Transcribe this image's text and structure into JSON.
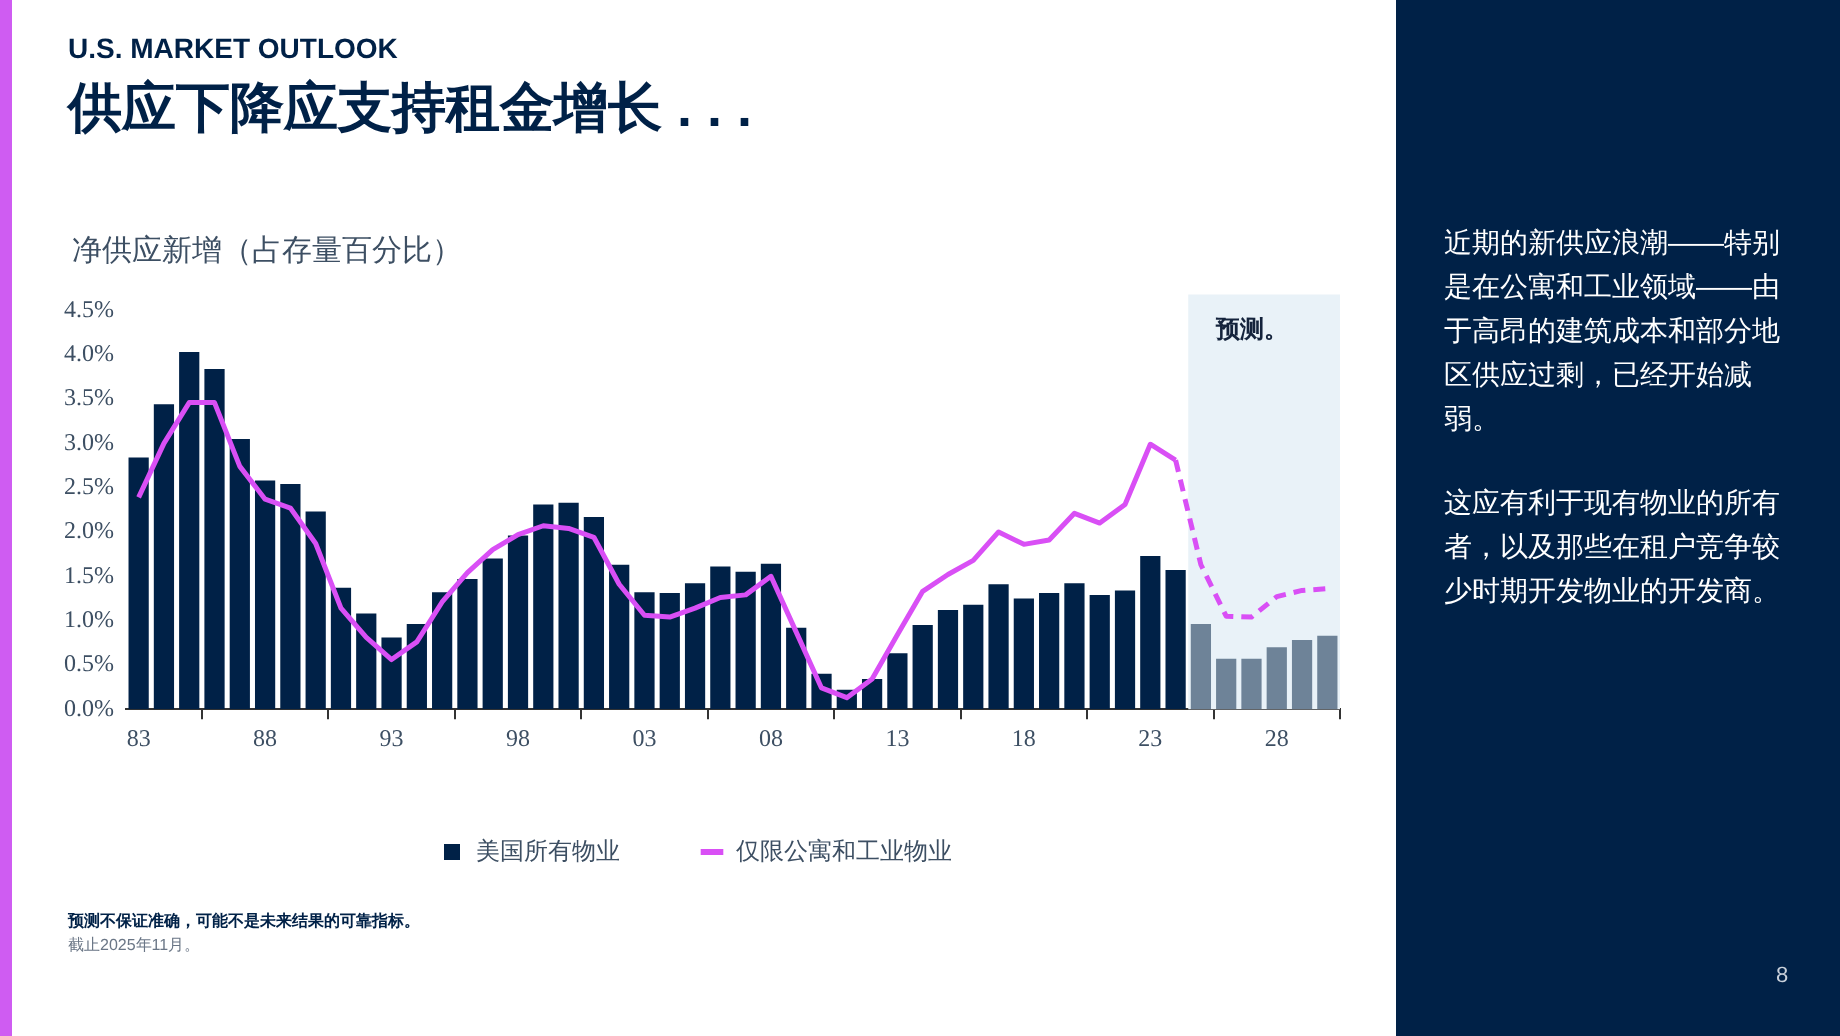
{
  "chart_data": {
    "type": "bar",
    "subtitle": "U.S. MARKET OUTLOOK",
    "title": "供应下降应支持租金增长 . . .",
    "ylabel": "净供应新增（占存量百分比）",
    "x": [
      1983,
      1984,
      1985,
      1986,
      1987,
      1988,
      1989,
      1990,
      1991,
      1992,
      1993,
      1994,
      1995,
      1996,
      1997,
      1998,
      1999,
      2000,
      2001,
      2002,
      2003,
      2004,
      2005,
      2006,
      2007,
      2008,
      2009,
      2010,
      2011,
      2012,
      2013,
      2014,
      2015,
      2016,
      2017,
      2018,
      2019,
      2020,
      2021,
      2022,
      2023,
      2024,
      2025,
      2026,
      2027,
      2028,
      2029,
      2030
    ],
    "xlim": [
      1982.5,
      2030.5
    ],
    "xticks": [
      {
        "value": 1983,
        "label": "83"
      },
      {
        "value": 1988,
        "label": "88"
      },
      {
        "value": 1993,
        "label": "93"
      },
      {
        "value": 1998,
        "label": "98"
      },
      {
        "value": 2003,
        "label": "03"
      },
      {
        "value": 2008,
        "label": "08"
      },
      {
        "value": 2013,
        "label": "13"
      },
      {
        "value": 2018,
        "label": "18"
      },
      {
        "value": 2023,
        "label": "23"
      },
      {
        "value": 2028,
        "label": "28"
      }
    ],
    "ylim": [
      0,
      4.5
    ],
    "yticks": [
      {
        "value": 0,
        "label": "0.0%"
      },
      {
        "value": 0.5,
        "label": "0.5%"
      },
      {
        "value": 1,
        "label": "1.0%"
      },
      {
        "value": 1.5,
        "label": "1.5%"
      },
      {
        "value": 2,
        "label": "2.0%"
      },
      {
        "value": 2.5,
        "label": "2.5%"
      },
      {
        "value": 3,
        "label": "3.0%"
      },
      {
        "value": 3.5,
        "label": "3.5%"
      },
      {
        "value": 4,
        "label": "4.0%"
      },
      {
        "value": 4.5,
        "label": "4.5%"
      }
    ],
    "series": [
      {
        "name": "美国所有物业",
        "color": "#002147",
        "colors": [
          "#002147",
          "#002147",
          "#002147",
          "#002147",
          "#002147",
          "#002147",
          "#002147",
          "#002147",
          "#002147",
          "#002147",
          "#002147",
          "#002147",
          "#002147",
          "#002147",
          "#002147",
          "#002147",
          "#002147",
          "#002147",
          "#002147",
          "#002147",
          "#002147",
          "#002147",
          "#002147",
          "#002147",
          "#002147",
          "#002147",
          "#002147",
          "#002147",
          "#002147",
          "#002147",
          "#002147",
          "#002147",
          "#002147",
          "#002147",
          "#002147",
          "#002147",
          "#002147",
          "#002147",
          "#002147",
          "#002147",
          "#002147",
          "#002147",
          "#6e8398",
          "#6e8398",
          "#6e8398",
          "#6e8398",
          "#6e8398",
          "#6e8398"
        ],
        "values": [
          2.84,
          3.44,
          4.03,
          3.84,
          3.05,
          2.58,
          2.54,
          2.23,
          1.37,
          1.08,
          0.81,
          0.96,
          1.32,
          1.47,
          1.7,
          1.96,
          2.31,
          2.33,
          2.17,
          1.63,
          1.32,
          1.31,
          1.42,
          1.61,
          1.55,
          1.64,
          0.92,
          0.4,
          0.22,
          0.34,
          0.63,
          0.95,
          1.12,
          1.18,
          1.41,
          1.25,
          1.31,
          1.42,
          1.29,
          1.34,
          1.73,
          1.57,
          0.96,
          0.57,
          0.57,
          0.7,
          0.78,
          0.83
        ]
      },
      {
        "name": "仅限公寓和工业物业",
        "type": "line",
        "color": "#d94ff5",
        "line_style": "solid",
        "values": [
          2.39,
          3.0,
          3.46,
          3.46,
          2.74,
          2.37,
          2.27,
          1.87,
          1.14,
          0.81,
          0.56,
          0.76,
          1.21,
          1.54,
          1.8,
          1.97,
          2.07,
          2.04,
          1.94,
          1.41,
          1.06,
          1.04,
          1.14,
          1.26,
          1.29,
          1.5,
          0.87,
          0.24,
          0.13,
          0.34,
          0.84,
          1.33,
          1.52,
          1.68,
          2.0,
          1.86,
          1.91,
          2.21,
          2.1,
          2.31,
          2.99,
          2.81,
          null,
          null,
          null,
          null,
          null,
          null
        ]
      },
      {
        "type": "line",
        "color": "#d94ff5",
        "line_style": "dashed",
        "values": [
          null,
          null,
          null,
          null,
          null,
          null,
          null,
          null,
          null,
          null,
          null,
          null,
          null,
          null,
          null,
          null,
          null,
          null,
          null,
          null,
          null,
          null,
          null,
          null,
          null,
          null,
          null,
          null,
          null,
          null,
          null,
          null,
          null,
          null,
          null,
          null,
          null,
          null,
          null,
          null,
          null,
          2.81,
          1.63,
          1.05,
          1.04,
          1.27,
          1.34,
          1.36
        ]
      }
    ],
    "bands": [
      {
        "axis": "x",
        "from": 2024.5,
        "to": 2030.5,
        "label": "预测。",
        "color": "#e9f2f8"
      }
    ],
    "marker": "none",
    "grid": false,
    "legend": "bottom",
    "annotations": [
      "预测不保证准确，可能不是未来结果的可靠指标。",
      "截止2025年11月。",
      "近期的新供应浪潮——特别是在公寓和工业领域——由于高昂的建筑成本和部分地区供应过剩，已经开始减弱。",
      "这应有利于现有物业的所有者，以及那些在租户竞争较少时期开发物业的开发商。",
      "8"
    ]
  }
}
